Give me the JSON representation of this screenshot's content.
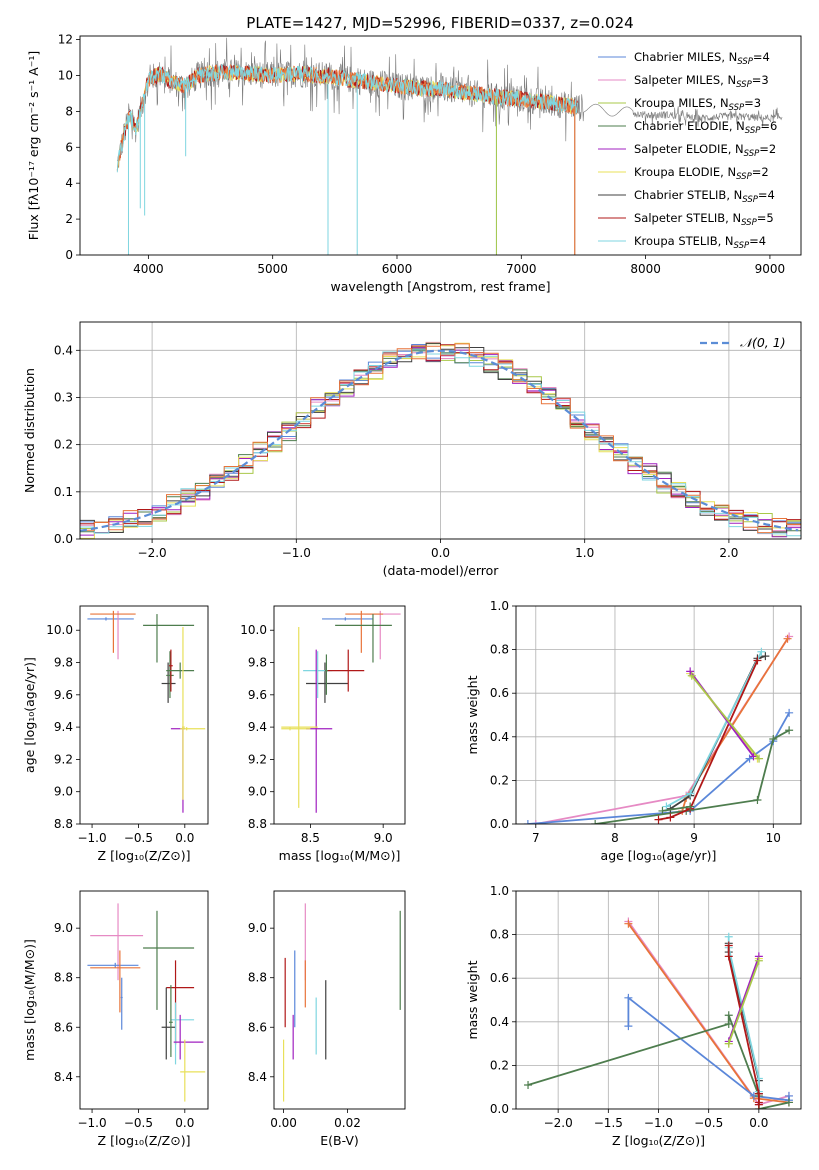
{
  "figure": {
    "title": "PLATE=1427, MJD=52996, FIBERID=0337, z=0.024"
  },
  "colors": {
    "chabrier_miles": "#5b87d9",
    "salpeter_miles": "#e68ac4",
    "kroupa_miles": "#a9c84a",
    "chabrier_elodie": "#4e7d4e",
    "salpeter_elodie": "#a020c0",
    "kroupa_elodie": "#e8e05a",
    "chabrier_stelib": "#404040",
    "salpeter_stelib": "#b01818",
    "kroupa_stelib": "#7fd6e0",
    "data_grey": "#7a7a7a",
    "orange": "#e8743a",
    "gauss": "#5b8dd6"
  },
  "chart_data": [
    {
      "id": "spectrum",
      "type": "line",
      "xlabel": "wavelength [Angstrom, rest frame]",
      "ylabel": "Flux [fλ10⁻¹⁷ erg cm⁻² s⁻¹ A⁻¹]",
      "xlim": [
        3450,
        9250
      ],
      "ylim": [
        0,
        12.2
      ],
      "xticks": [
        4000,
        5000,
        6000,
        7000,
        8000,
        9000
      ],
      "yticks": [
        0,
        2,
        4,
        6,
        8,
        10,
        12
      ],
      "legend_position": "top-right",
      "legend": [
        "Chabrier MILES, N_SSP=4",
        "Salpeter MILES, N_SSP=3",
        "Kroupa MILES, N_SSP=3",
        "Chabrier ELODIE, N_SSP=6",
        "Salpeter ELODIE, N_SSP=2",
        "Kroupa ELODIE, N_SSP=2",
        "Chabrier STELIB, N_SSP=4",
        "Salpeter STELIB, N_SSP=5",
        "Kroupa STELIB, N_SSP=4"
      ],
      "continuum": {
        "x": [
          3750,
          3800,
          3850,
          3900,
          3950,
          4000,
          4100,
          4200,
          4300,
          4400,
          4500,
          4600,
          4800,
          5000,
          5200,
          5400,
          5600,
          5800,
          6000,
          6200,
          6400,
          6600,
          6800,
          7000,
          7200,
          7400,
          7600,
          7800,
          8000,
          8200,
          8400,
          8600,
          8800,
          9000,
          9100
        ],
        "y": [
          5.0,
          6.6,
          7.8,
          7.0,
          8.4,
          9.8,
          10.1,
          9.6,
          9.4,
          10.0,
          10.1,
          10.2,
          10.1,
          10.0,
          10.1,
          10.0,
          9.8,
          9.6,
          9.4,
          9.3,
          9.2,
          9.0,
          8.8,
          8.7,
          8.5,
          8.3,
          8.1,
          8.0,
          7.8,
          7.8,
          7.6,
          7.7,
          7.7,
          7.6,
          7.7
        ]
      },
      "dips": [
        [
          3935,
          2.6
        ],
        [
          3970,
          2.2
        ],
        [
          4300,
          5.5
        ],
        [
          5445,
          0.0
        ],
        [
          5680,
          0.0
        ],
        [
          6800,
          0.0
        ],
        [
          7430,
          0.0
        ],
        [
          3840,
          0.0
        ]
      ]
    },
    {
      "id": "residuals",
      "type": "line",
      "xlabel": "(data-model)/error",
      "ylabel": "Normed distribution",
      "xlim": [
        -2.5,
        2.5
      ],
      "ylim": [
        0,
        0.46
      ],
      "xticks": [
        -2,
        -1,
        0,
        1,
        2
      ],
      "yticks": [
        0.0,
        0.1,
        0.2,
        0.3,
        0.4
      ],
      "grid": true,
      "legend_position": "top-right",
      "legend": [
        "𝒩(0, 1)"
      ],
      "bin_width": 0.1
    },
    {
      "id": "age-vs-Z",
      "type": "scatter",
      "xlabel": "Z [log₁₀(Z/Z⊙)]",
      "ylabel": "age  [log₁₀(age/yr)]",
      "xlim": [
        -1.13,
        0.25
      ],
      "ylim": [
        8.8,
        10.15
      ],
      "xticks": [
        -1.0,
        -0.5,
        0.0
      ],
      "yticks": [
        8.8,
        9.0,
        9.2,
        9.4,
        9.6,
        9.8,
        10.0
      ],
      "points": [
        {
          "c": "chabrier_miles",
          "x": -0.85,
          "xe": [
            -1.05,
            -0.55
          ],
          "y": 10.07,
          "ye": [
            10.06,
            10.08
          ]
        },
        {
          "c": "salpeter_miles",
          "x": -0.72,
          "xe": [
            -0.72,
            -0.72
          ],
          "y": 10.05,
          "ye": [
            9.82,
            10.12
          ]
        },
        {
          "c": "orange",
          "x": -0.77,
          "xe": [
            -1.02,
            -0.53
          ],
          "y": 10.1,
          "ye": [
            9.86,
            10.12
          ]
        },
        {
          "c": "chabrier_elodie",
          "x": -0.3,
          "xe": [
            -0.45,
            0.1
          ],
          "y": 10.03,
          "ye": [
            9.8,
            10.1
          ]
        },
        {
          "c": "chabrier_stelib",
          "x": -0.18,
          "xe": [
            -0.25,
            -0.1
          ],
          "y": 9.67,
          "ye": [
            9.55,
            9.8
          ]
        },
        {
          "c": "chabrier_elodie",
          "x": -0.16,
          "xe": [
            -0.2,
            -0.12
          ],
          "y": 9.72,
          "ye": [
            9.58,
            9.87
          ]
        },
        {
          "c": "salpeter_stelib",
          "x": -0.15,
          "xe": [
            -0.17,
            -0.13
          ],
          "y": 9.78,
          "ye": [
            9.62,
            9.88
          ]
        },
        {
          "c": "chabrier_elodie",
          "x": -0.05,
          "xe": [
            -0.2,
            0.1
          ],
          "y": 9.75,
          "ye": [
            9.7,
            9.8
          ]
        },
        {
          "c": "salpeter_elodie",
          "x": -0.02,
          "xe": [
            -0.15,
            0.0
          ],
          "y": 9.39,
          "ye": [
            8.87,
            9.4
          ]
        },
        {
          "c": "kroupa_elodie",
          "x": 0.02,
          "xe": [
            -0.05,
            0.22
          ],
          "y": 9.39,
          "ye": [
            9.38,
            9.4
          ]
        },
        {
          "c": "kroupa_elodie",
          "x": -0.02,
          "xe": [
            -0.03,
            0.0
          ],
          "y": 9.4,
          "ye": [
            8.95,
            10.02
          ]
        }
      ]
    },
    {
      "id": "age-vs-mass",
      "type": "scatter",
      "xlabel": "mass [log₁₀(M/M⊙)]",
      "ylabel": "",
      "xlim": [
        8.25,
        9.15
      ],
      "ylim": [
        8.8,
        10.15
      ],
      "xticks": [
        8.5,
        9.0
      ],
      "yticks": [
        8.8,
        9.0,
        9.2,
        9.4,
        9.6,
        9.8,
        10.0
      ],
      "points": [
        {
          "c": "chabrier_miles",
          "x": 8.74,
          "xe": [
            8.58,
            8.93
          ],
          "y": 10.07,
          "ye": [
            10.06,
            10.08
          ]
        },
        {
          "c": "salpeter_miles",
          "x": 8.98,
          "xe": [
            8.87,
            9.12
          ],
          "y": 10.1,
          "ye": [
            9.82,
            10.12
          ]
        },
        {
          "c": "orange",
          "x": 8.85,
          "xe": [
            8.74,
            9.0
          ],
          "y": 10.1,
          "ye": [
            9.86,
            10.12
          ]
        },
        {
          "c": "chabrier_elodie",
          "x": 8.93,
          "xe": [
            8.67,
            9.06
          ],
          "y": 10.03,
          "ye": [
            9.8,
            10.1
          ]
        },
        {
          "c": "chabrier_stelib",
          "x": 8.6,
          "xe": [
            8.47,
            8.76
          ],
          "y": 9.67,
          "ye": [
            9.55,
            9.8
          ]
        },
        {
          "c": "kroupa_stelib",
          "x": 8.55,
          "xe": [
            8.45,
            8.65
          ],
          "y": 9.75,
          "ye": [
            9.58,
            9.87
          ]
        },
        {
          "c": "salpeter_stelib",
          "x": 8.76,
          "xe": [
            8.6,
            8.87
          ],
          "y": 9.75,
          "ye": [
            9.62,
            9.88
          ]
        },
        {
          "c": "chabrier_elodie",
          "x": 8.61,
          "xe": [
            8.6,
            8.62
          ],
          "y": 9.75,
          "ye": [
            9.6,
            9.85
          ]
        },
        {
          "c": "salpeter_elodie",
          "x": 8.54,
          "xe": [
            8.47,
            8.65
          ],
          "y": 9.39,
          "ye": [
            8.87,
            9.88
          ]
        },
        {
          "c": "kroupa_elodie",
          "x": 8.42,
          "xe": [
            8.3,
            8.55
          ],
          "y": 9.4,
          "ye": [
            8.9,
            10.02
          ]
        },
        {
          "c": "kroupa_elodie",
          "x": 8.36,
          "xe": [
            8.3,
            8.5
          ],
          "y": 9.39,
          "ye": [
            9.38,
            9.4
          ]
        }
      ]
    },
    {
      "id": "mass-weight-vs-age",
      "type": "line",
      "xlabel": "age  [log₁₀(age/yr)]",
      "ylabel": "mass weight",
      "xlim": [
        6.75,
        10.35
      ],
      "ylim": [
        0,
        1.0
      ],
      "xticks": [
        7,
        8,
        9,
        10
      ],
      "yticks": [
        0.0,
        0.2,
        0.4,
        0.6,
        0.8,
        1.0
      ],
      "grid": true,
      "series": [
        {
          "c": "salpeter_miles",
          "x": [
            7.0,
            8.9,
            10.2
          ],
          "y": [
            0.0,
            0.13,
            0.86
          ]
        },
        {
          "c": "orange",
          "x": [
            8.85,
            8.9,
            10.18
          ],
          "y": [
            0.06,
            0.12,
            0.85
          ]
        },
        {
          "c": "chabrier_miles",
          "x": [
            6.9,
            8.95,
            9.7,
            10.0,
            10.2
          ],
          "y": [
            0.0,
            0.06,
            0.3,
            0.38,
            0.51
          ]
        },
        {
          "c": "chabrier_elodie",
          "x": [
            7.75,
            8.9,
            9.8,
            10.0,
            10.2
          ],
          "y": [
            0.0,
            0.06,
            0.11,
            0.39,
            0.43
          ]
        },
        {
          "c": "chabrier_stelib",
          "x": [
            8.7,
            8.95,
            9.8,
            9.9
          ],
          "y": [
            0.07,
            0.13,
            0.76,
            0.77
          ]
        },
        {
          "c": "kroupa_stelib",
          "x": [
            8.65,
            8.95,
            9.85
          ],
          "y": [
            0.08,
            0.14,
            0.79
          ]
        },
        {
          "c": "salpeter_stelib",
          "x": [
            8.55,
            8.7,
            8.95,
            9.8
          ],
          "y": [
            0.02,
            0.03,
            0.07,
            0.75
          ]
        },
        {
          "c": "kroupa_elodie",
          "x": [
            8.95,
            9.8
          ],
          "y": [
            0.69,
            0.3
          ]
        },
        {
          "c": "salpeter_elodie",
          "x": [
            8.95,
            9.75
          ],
          "y": [
            0.7,
            0.31
          ]
        },
        {
          "c": "kroupa_miles",
          "x": [
            8.97,
            9.82
          ],
          "y": [
            0.68,
            0.3
          ]
        },
        {
          "c": "chabrier_elodie",
          "x": [
            8.6,
            8.95
          ],
          "y": [
            0.06,
            0.08
          ]
        }
      ]
    },
    {
      "id": "mass-vs-Z",
      "type": "scatter",
      "xlabel": "Z [log₁₀(Z/Z⊙)]",
      "ylabel": "mass [log₁₀(M/M⊙)]",
      "xlim": [
        -1.13,
        0.25
      ],
      "ylim": [
        8.27,
        9.15
      ],
      "xticks": [
        -1.0,
        -0.5,
        0.0
      ],
      "yticks": [
        8.4,
        8.6,
        8.8,
        9.0
      ],
      "points": [
        {
          "c": "salpeter_miles",
          "x": -0.72,
          "xe": [
            -1.02,
            -0.45
          ],
          "y": 8.97,
          "ye": [
            8.79,
            9.1
          ]
        },
        {
          "c": "chabrier_miles",
          "x": -0.75,
          "xe": [
            -1.05,
            -0.5
          ],
          "y": 8.85,
          "ye": [
            8.84,
            8.86
          ]
        },
        {
          "c": "orange",
          "x": -0.7,
          "xe": [
            -1.02,
            -0.48
          ],
          "y": 8.84,
          "ye": [
            8.66,
            8.91
          ]
        },
        {
          "c": "chabrier_miles",
          "x": -0.68,
          "xe": [
            -0.69,
            -0.67
          ],
          "y": 8.72,
          "ye": [
            8.59,
            8.8
          ]
        },
        {
          "c": "chabrier_elodie",
          "x": -0.3,
          "xe": [
            -0.45,
            0.1
          ],
          "y": 8.92,
          "ye": [
            8.67,
            9.07
          ]
        },
        {
          "c": "salpeter_stelib",
          "x": -0.1,
          "xe": [
            -0.2,
            0.1
          ],
          "y": 8.76,
          "ye": [
            8.53,
            8.87
          ]
        },
        {
          "c": "chabrier_stelib",
          "x": -0.2,
          "xe": [
            -0.25,
            -0.1
          ],
          "y": 8.6,
          "ye": [
            8.47,
            8.76
          ]
        },
        {
          "c": "kroupa_stelib",
          "x": -0.1,
          "xe": [
            -0.15,
            0.1
          ],
          "y": 8.63,
          "ye": [
            8.45,
            8.7
          ]
        },
        {
          "c": "chabrier_elodie",
          "x": -0.15,
          "xe": [
            -0.17,
            -0.13
          ],
          "y": 8.62,
          "ye": [
            8.48,
            8.77
          ]
        },
        {
          "c": "salpeter_elodie",
          "x": -0.05,
          "xe": [
            -0.12,
            0.2
          ],
          "y": 8.54,
          "ye": [
            8.47,
            8.65
          ]
        },
        {
          "c": "kroupa_elodie",
          "x": 0.0,
          "xe": [
            -0.05,
            0.22
          ],
          "y": 8.42,
          "ye": [
            8.3,
            8.55
          ]
        }
      ]
    },
    {
      "id": "mass-vs-EBV",
      "type": "scatter",
      "xlabel": "E(B-V)",
      "ylabel": "",
      "xlim": [
        -0.003,
        0.038
      ],
      "ylim": [
        8.27,
        9.15
      ],
      "xticks": [
        0.0,
        0.02
      ],
      "yticks": [
        8.4,
        8.6,
        8.8,
        9.0
      ],
      "bars": [
        {
          "c": "kroupa_elodie",
          "x": 0.0,
          "ye": [
            8.3,
            8.55
          ]
        },
        {
          "c": "salpeter_stelib",
          "x": 0.0005,
          "ye": [
            8.6,
            8.88
          ]
        },
        {
          "c": "chabrier_miles",
          "x": 0.0035,
          "ye": [
            8.6,
            8.91
          ]
        },
        {
          "c": "salpeter_elodie",
          "x": 0.003,
          "ye": [
            8.47,
            8.65
          ]
        },
        {
          "c": "salpeter_miles",
          "x": 0.0068,
          "ye": [
            8.79,
            9.1
          ]
        },
        {
          "c": "orange",
          "x": 0.0068,
          "ye": [
            8.68,
            8.87
          ]
        },
        {
          "c": "kroupa_stelib",
          "x": 0.0102,
          "ye": [
            8.49,
            8.72
          ]
        },
        {
          "c": "chabrier_stelib",
          "x": 0.0132,
          "ye": [
            8.47,
            8.79
          ]
        },
        {
          "c": "chabrier_elodie",
          "x": 0.0365,
          "ye": [
            8.67,
            9.07
          ]
        }
      ]
    },
    {
      "id": "mass-weight-vs-Z",
      "type": "line",
      "xlabel": "Z [log₁₀(Z/Z⊙)]",
      "ylabel": "mass weight",
      "xlim": [
        -2.42,
        0.42
      ],
      "ylim": [
        0,
        1.0
      ],
      "xticks": [
        -2.0,
        -1.5,
        -1.0,
        -0.5,
        0.0
      ],
      "yticks": [
        0.0,
        0.2,
        0.4,
        0.6,
        0.8,
        1.0
      ],
      "grid": true,
      "series": [
        {
          "c": "salpeter_miles",
          "x": [
            -1.3,
            0.0,
            0.3
          ],
          "y": [
            0.86,
            0.02,
            0.06
          ]
        },
        {
          "c": "orange",
          "x": [
            -1.3,
            -0.05,
            0.3
          ],
          "y": [
            0.85,
            0.05,
            0.03
          ]
        },
        {
          "c": "chabrier_miles",
          "x": [
            -1.3,
            -1.3,
            -0.05,
            0.3,
            0.3
          ],
          "y": [
            0.38,
            0.51,
            0.06,
            0.04,
            0.06
          ]
        },
        {
          "c": "chabrier_elodie",
          "x": [
            -2.3,
            -0.3,
            -0.3,
            0.0,
            0.0,
            0.3
          ],
          "y": [
            0.11,
            0.39,
            0.43,
            0.06,
            0.0,
            0.03
          ]
        },
        {
          "c": "chabrier_stelib",
          "x": [
            -0.3,
            -0.3,
            0.0,
            0.0
          ],
          "y": [
            0.76,
            0.72,
            0.13,
            0.07
          ]
        },
        {
          "c": "kroupa_stelib",
          "x": [
            -0.3,
            -0.3,
            0.0,
            0.0
          ],
          "y": [
            0.79,
            0.74,
            0.14,
            0.08
          ]
        },
        {
          "c": "salpeter_stelib",
          "x": [
            -0.3,
            -0.3,
            0.0,
            0.0,
            0.0
          ],
          "y": [
            0.75,
            0.7,
            0.07,
            0.03,
            0.02
          ]
        },
        {
          "c": "kroupa_elodie",
          "x": [
            0.0,
            -0.3
          ],
          "y": [
            0.69,
            0.3
          ]
        },
        {
          "c": "salpeter_elodie",
          "x": [
            0.0,
            -0.3
          ],
          "y": [
            0.7,
            0.31
          ]
        },
        {
          "c": "kroupa_miles",
          "x": [
            0.0,
            -0.3
          ],
          "y": [
            0.68,
            0.3
          ]
        }
      ]
    }
  ]
}
